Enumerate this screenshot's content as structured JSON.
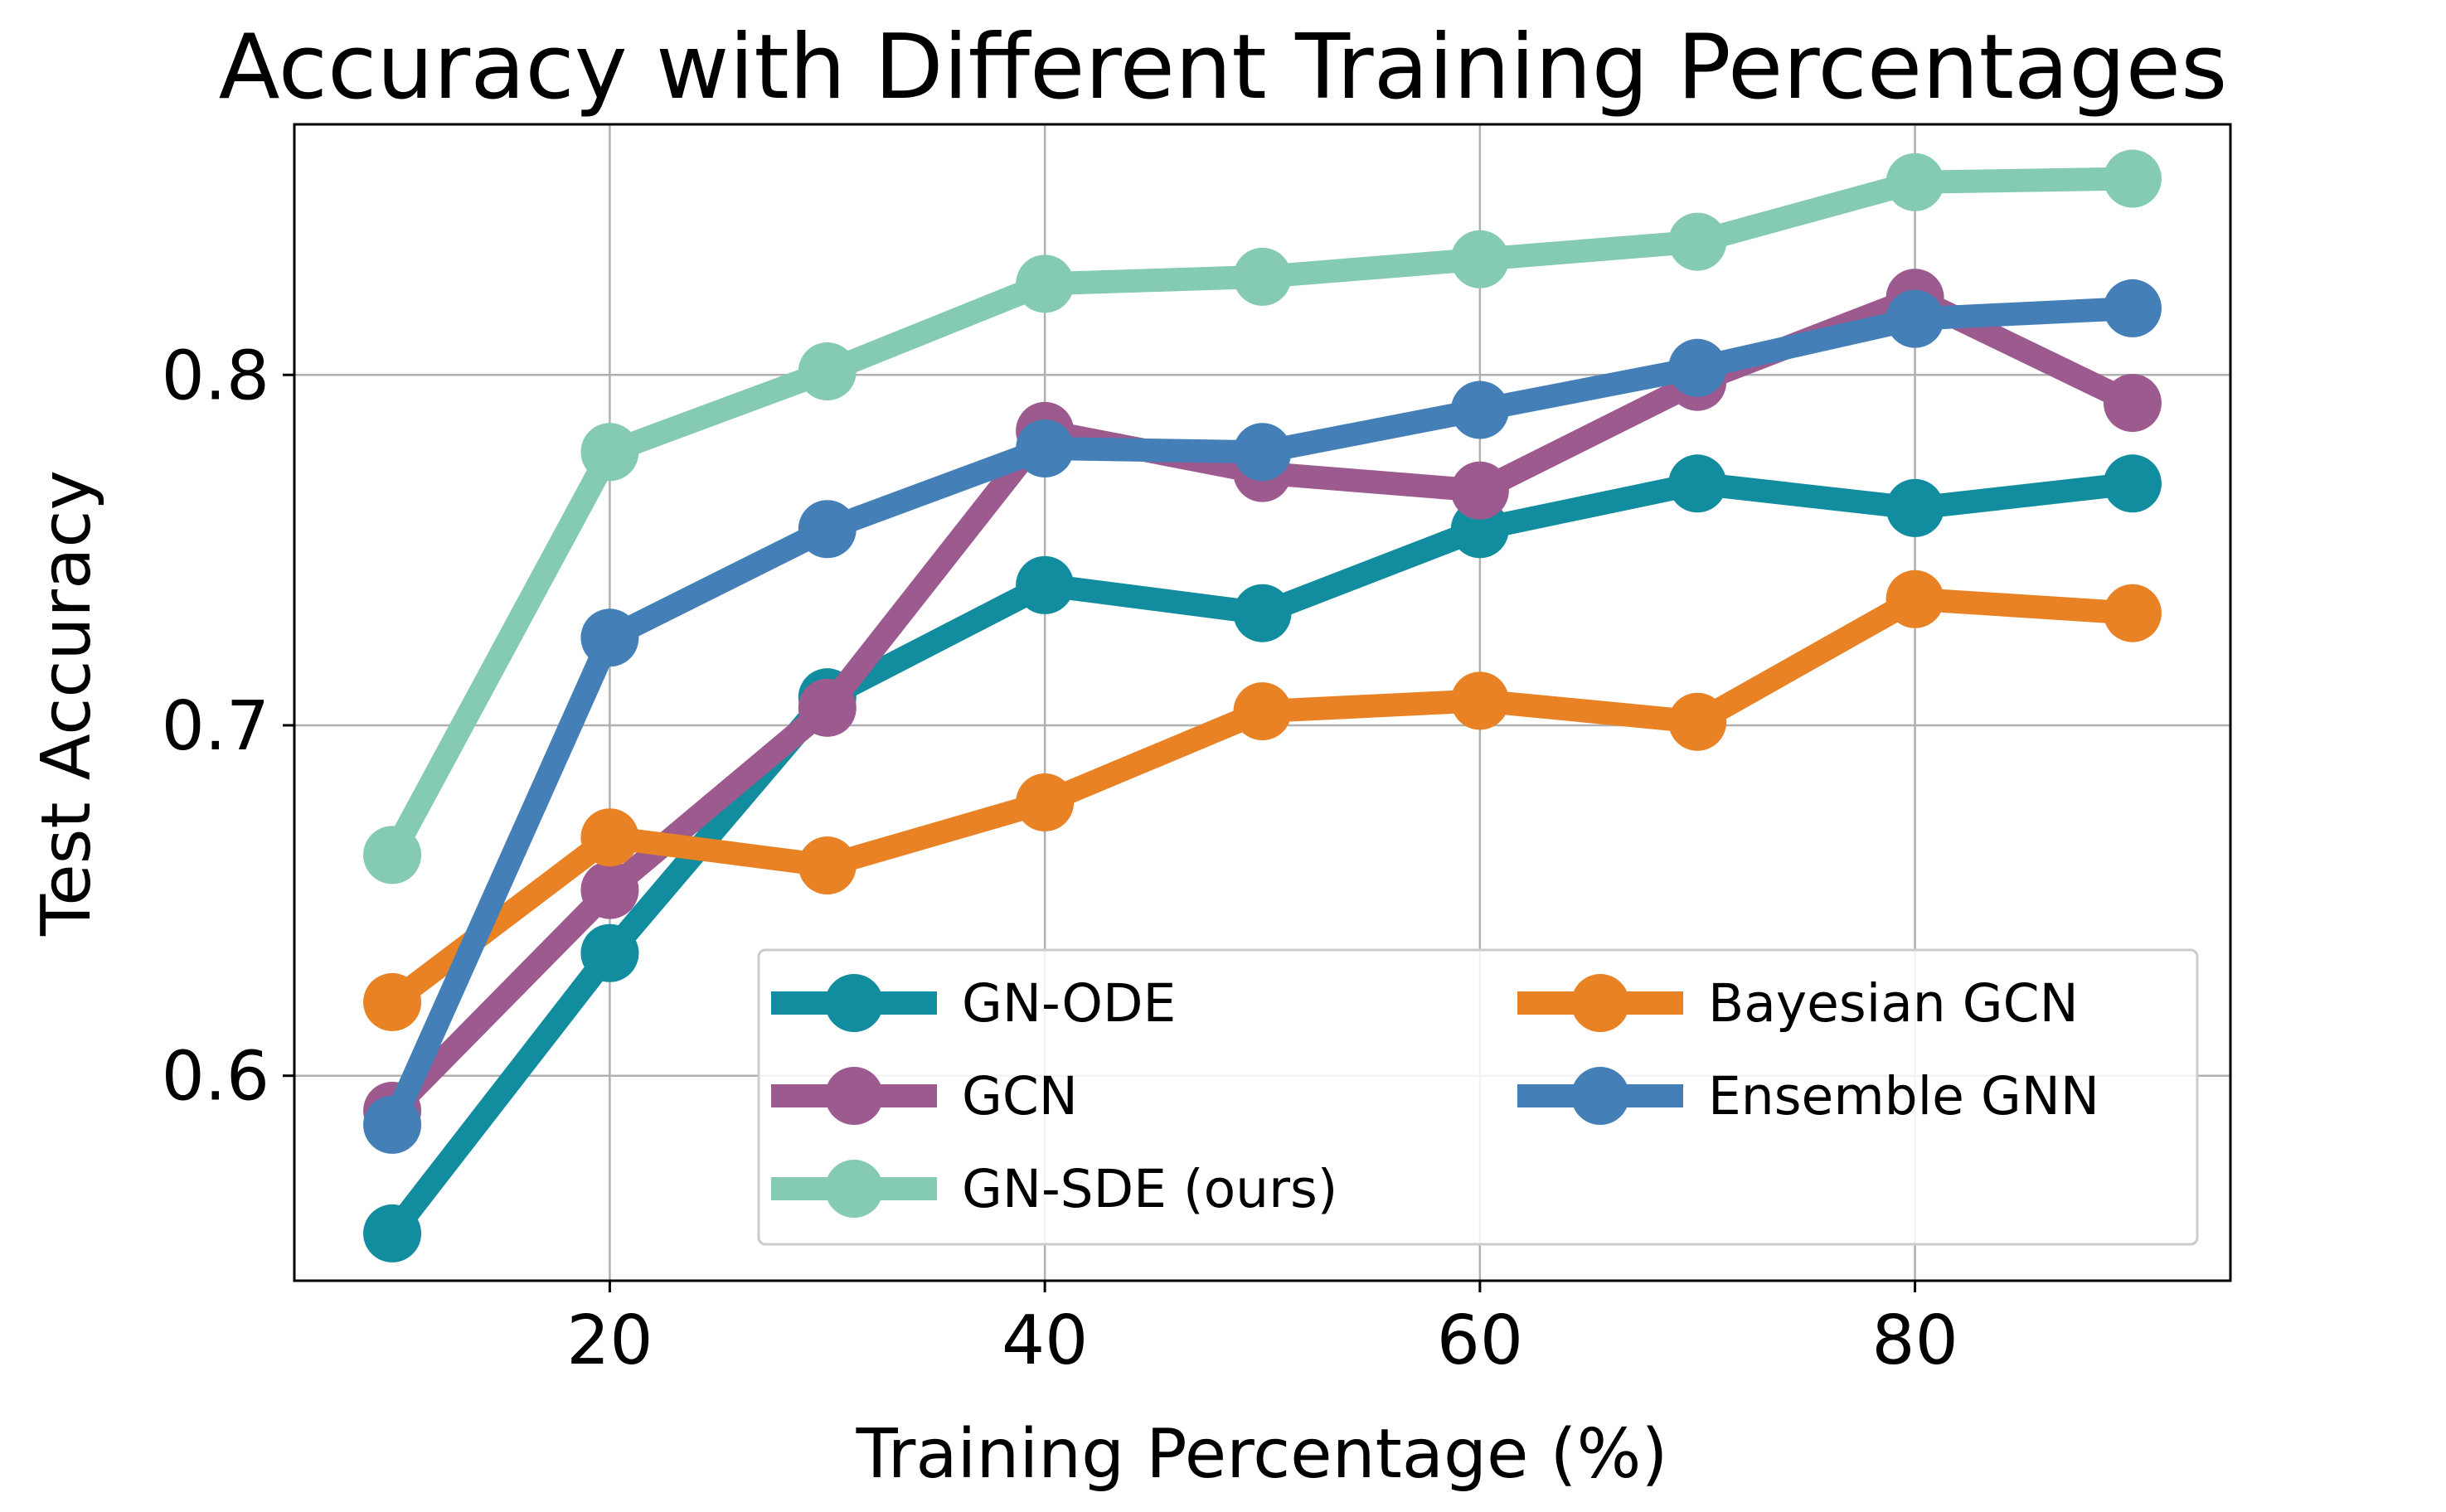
{
  "chart_data": {
    "type": "line",
    "title": "Accuracy with Different Training Percentages",
    "xlabel": "Training Percentage (%)",
    "ylabel": "Test Accuracy",
    "x": [
      10,
      20,
      30,
      40,
      50,
      60,
      70,
      80,
      90
    ],
    "xlim": [
      5.5,
      94.5
    ],
    "ylim": [
      0.5415,
      0.8715
    ],
    "xticks": [
      20,
      40,
      60,
      80
    ],
    "yticks": [
      0.6,
      0.7,
      0.8
    ],
    "xtick_labels": [
      "20",
      "40",
      "60",
      "80"
    ],
    "ytick_labels": [
      "0.6",
      "0.7",
      "0.8"
    ],
    "grid": true,
    "legend_position": "lower-right",
    "legend_columns": 2,
    "series": [
      {
        "name": "GN-ODE",
        "color": "#128c9f",
        "values": [
          0.555,
          0.635,
          0.708,
          0.74,
          0.732,
          0.756,
          0.769,
          0.762,
          0.769
        ]
      },
      {
        "name": "GCN",
        "color": "#9c5a8f",
        "values": [
          0.59,
          0.653,
          0.705,
          0.784,
          0.772,
          0.767,
          0.798,
          0.822,
          0.792
        ]
      },
      {
        "name": "GN-SDE (ours)",
        "color": "#85cbb1",
        "values": [
          0.663,
          0.778,
          0.801,
          0.826,
          0.828,
          0.833,
          0.838,
          0.855,
          0.856
        ]
      },
      {
        "name": "Bayesian GCN",
        "color": "#e88224",
        "values": [
          0.621,
          0.668,
          0.66,
          0.678,
          0.704,
          0.707,
          0.701,
          0.736,
          0.732
        ]
      },
      {
        "name": "Ensemble GNN",
        "color": "#4480b7",
        "values": [
          0.586,
          0.725,
          0.756,
          0.779,
          0.778,
          0.79,
          0.802,
          0.816,
          0.819
        ]
      }
    ]
  }
}
